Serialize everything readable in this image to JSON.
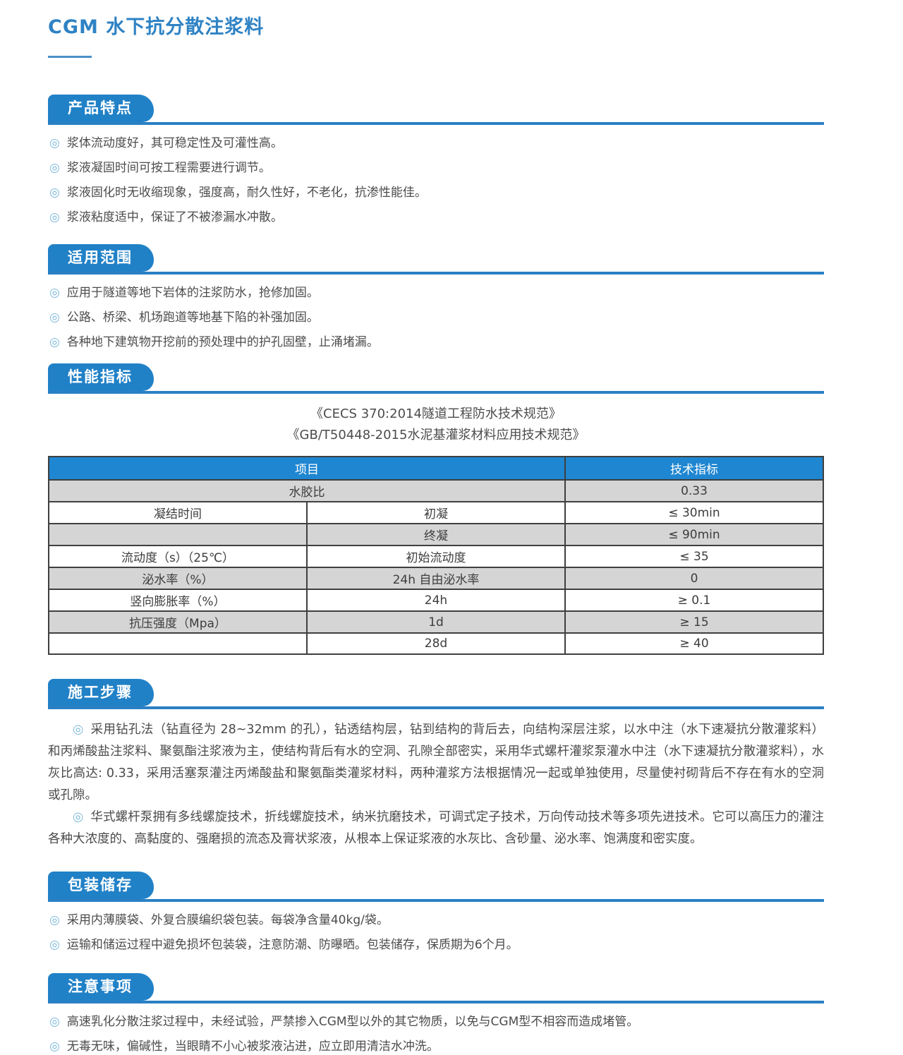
{
  "page": {
    "title": "CGM 水下抗分散注浆料"
  },
  "colors": {
    "accent_blue": "#2181c7",
    "table_header_blue": "#1f86d1",
    "shade_gray": "#d5d5d5",
    "text_gray": "#4c4c4c",
    "bullet_blue": "#7cb8dc"
  },
  "icons": {
    "bullet": "◎"
  },
  "sections": {
    "features": {
      "heading": "产品特点",
      "items": [
        "浆体流动度好，其可稳定性及可灌性高。",
        "浆液凝固时间可按工程需要进行调节。",
        "浆液固化时无收缩现象，强度高，耐久性好，不老化，抗渗性能佳。",
        "浆液粘度适中，保证了不被渗漏水冲散。"
      ]
    },
    "scope": {
      "heading": "适用范围",
      "items": [
        "应用于隧道等地下岩体的注浆防水，抢修加固。",
        "公路、桥梁、机场跑道等地基下陷的补强加固。",
        "各种地下建筑物开挖前的预处理中的护孔固壁，止涌堵漏。"
      ]
    },
    "performance": {
      "heading": "性能指标",
      "standards": [
        "《CECS 370:2014隧道工程防水技术规范》",
        "《GB/T50448-2015水泥基灌浆材料应用技术规范》"
      ],
      "table": {
        "header": [
          {
            "text": "项目",
            "colspan": 2
          },
          {
            "text": "技术指标"
          }
        ],
        "rows": [
          {
            "shade": true,
            "cells": [
              {
                "text": "水胶比",
                "colspan": 2
              },
              {
                "text": "0.33"
              }
            ]
          },
          {
            "shade": false,
            "cells": [
              {
                "text": "凝结时间"
              },
              {
                "text": "初凝"
              },
              {
                "text": "≤ 30min"
              }
            ]
          },
          {
            "shade": true,
            "cells": [
              {
                "text": ""
              },
              {
                "text": "终凝"
              },
              {
                "text": "≤ 90min"
              }
            ]
          },
          {
            "shade": false,
            "cells": [
              {
                "text": "流动度（s）（25℃）"
              },
              {
                "text": "初始流动度"
              },
              {
                "text": "≤ 35"
              }
            ]
          },
          {
            "shade": true,
            "cells": [
              {
                "text": "泌水率（%）"
              },
              {
                "text": "24h 自由泌水率"
              },
              {
                "text": "0"
              }
            ]
          },
          {
            "shade": false,
            "cells": [
              {
                "text": "竖向膨胀率（%）"
              },
              {
                "text": "24h"
              },
              {
                "text": "≥ 0.1"
              }
            ]
          },
          {
            "shade": true,
            "cells": [
              {
                "text": "抗压强度（Mpa）"
              },
              {
                "text": "1d"
              },
              {
                "text": "≥ 15"
              }
            ]
          },
          {
            "shade": false,
            "cells": [
              {
                "text": ""
              },
              {
                "text": "28d"
              },
              {
                "text": "≥ 40"
              }
            ]
          }
        ]
      }
    },
    "construction": {
      "heading": "施工步骤",
      "paragraphs": [
        "采用钻孔法（钻直径为 28~32mm 的孔），钻透结构层，钻到结构的背后去，向结构深层注浆，以水中注（水下速凝抗分散灌浆料）和丙烯酸盐注浆料、聚氨酯注浆液为主，使结构背后有水的空洞、孔隙全部密实，采用华式螺杆灌浆泵灌水中注（水下速凝抗分散灌浆料），水灰比高达: 0.33，采用活塞泵灌注丙烯酸盐和聚氨酯类灌浆材料，两种灌浆方法根据情况一起或单独使用，尽量使衬砌背后不存在有水的空洞或孔隙。",
        "华式螺杆泵拥有多线螺旋技术，折线螺旋技术，纳米抗磨技术，可调式定子技术，万向传动技术等多项先进技术。它可以高压力的灌注各种大浓度的、高黏度的、强磨损的流态及膏状浆液，从根本上保证浆液的水灰比、含砂量、泌水率、饱满度和密实度。"
      ]
    },
    "packaging": {
      "heading": "包装储存",
      "items": [
        "采用内薄膜袋、外复合膜编织袋包装。每袋净含量40kg/袋。",
        "运输和储运过程中避免损坏包装袋，注意防潮、防曝晒。包装储存，保质期为6个月。"
      ]
    },
    "precautions": {
      "heading": "注意事项",
      "items": [
        "高速乳化分散注浆过程中，未经试验，严禁掺入CGM型以外的其它物质，以免与CGM型不相容而造成堵管。",
        "无毒无味，偏碱性，当眼睛不小心被浆液沾进，应立即用清洁水冲洗。"
      ]
    }
  }
}
